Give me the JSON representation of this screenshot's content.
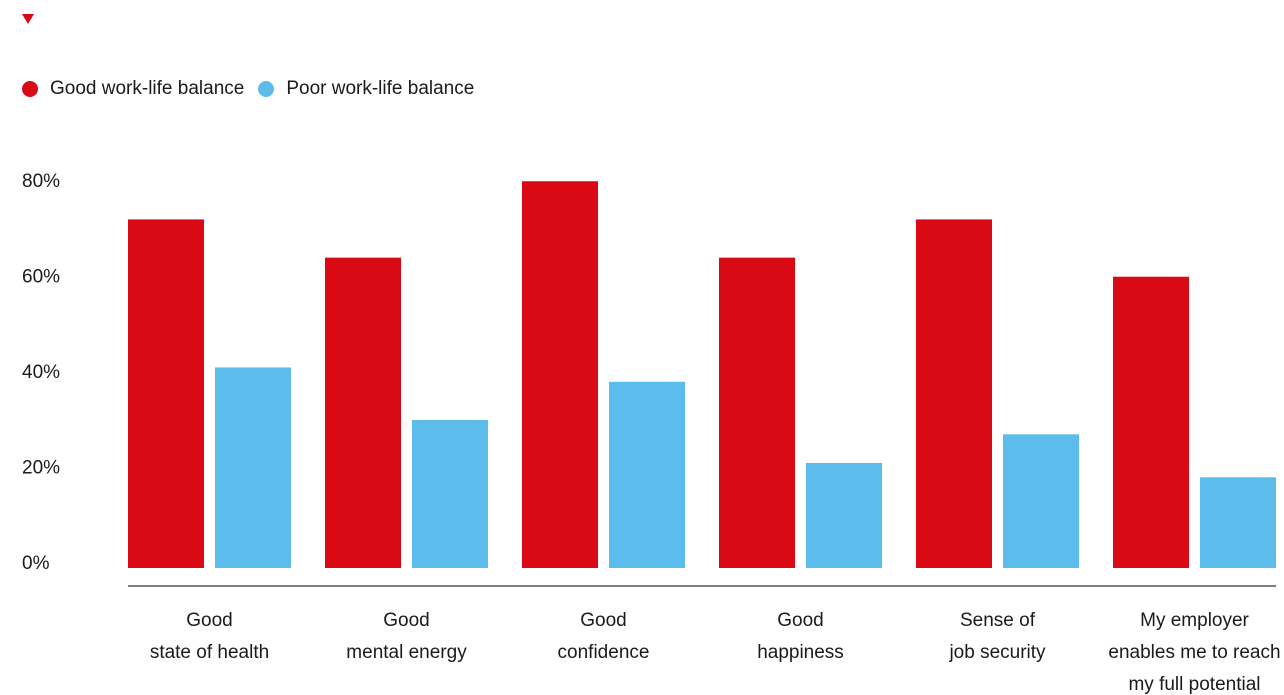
{
  "colors": {
    "accent": "#d90a14",
    "good": "#d90a14",
    "poor": "#5cbdec",
    "axis": "#555555"
  },
  "legend": [
    {
      "label": "Good work-life balance",
      "color": "#d90a14"
    },
    {
      "label": "Poor work-life balance",
      "color": "#5cbdec"
    }
  ],
  "chart_data": {
    "type": "bar",
    "title": "",
    "xlabel": "",
    "ylabel": "",
    "ylim": [
      0,
      80
    ],
    "yticks": [
      "0%",
      "20%",
      "40%",
      "60%",
      "80%"
    ],
    "ytick_values": [
      0,
      20,
      40,
      60,
      80
    ],
    "grid": false,
    "legend_position": "top-left",
    "categories": [
      [
        "Good",
        "state of health"
      ],
      [
        "Good",
        "mental energy"
      ],
      [
        "Good",
        "confidence"
      ],
      [
        "Good",
        "happiness"
      ],
      [
        "Sense of",
        "job security"
      ],
      [
        "My employer",
        "enables me to reach",
        "my full potential"
      ]
    ],
    "series": [
      {
        "name": "Good work-life balance",
        "values": [
          73,
          65,
          81,
          65,
          73,
          61
        ]
      },
      {
        "name": "Poor work-life balance",
        "values": [
          42,
          31,
          39,
          22,
          28,
          19
        ]
      }
    ]
  }
}
